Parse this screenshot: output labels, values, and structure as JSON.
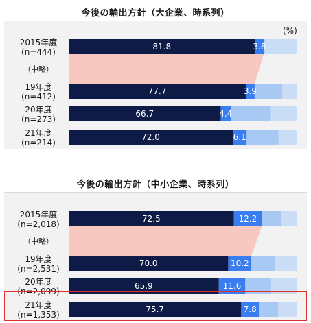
{
  "colors": {
    "future_expand": "#0d1b46",
    "new_start": "#16337f",
    "maintain": "#3a7df0",
    "reduce": "#a9c9f5",
    "withdraw": "#c9ddf7",
    "connector": "#f6c8c0",
    "highlight": "#e03030"
  },
  "chart_data": [
    {
      "type": "bar",
      "orientation": "horizontal",
      "stacked": true,
      "title": "今後の輸出方針（大企業、時系列）",
      "unit_label": "(%)",
      "omission_label": "（中略）",
      "rows": [
        {
          "label_year": "2015年度",
          "label_n": "(n=444)",
          "values": [
            81.8,
            0.0,
            3.8,
            0.5,
            0.6
          ]
        },
        {
          "label_year": "19年度",
          "label_n": "(n=412)",
          "values": [
            77.7,
            0.0,
            3.9,
            12.1,
            1.4
          ]
        },
        {
          "label_year": "20年度",
          "label_n": "(n=273)",
          "values": [
            66.7,
            0.0,
            4.4,
            17.6,
            0.4
          ]
        },
        {
          "label_year": "21年度",
          "label_n": "(n=214)",
          "values": [
            72.0,
            0.0,
            6.1,
            14.0,
            0.7
          ]
        }
      ],
      "labeled_values": [
        [
          "81.8",
          "3.8"
        ],
        [
          "77.7",
          "3.9"
        ],
        [
          "66.7",
          "4.4"
        ],
        [
          "72.0",
          "6.1"
        ]
      ],
      "xlim": [
        0,
        100
      ]
    },
    {
      "type": "bar",
      "orientation": "horizontal",
      "stacked": true,
      "title": "今後の輸出方針（中小企業、時系列）",
      "omission_label": "（中略）",
      "rows": [
        {
          "label_year": "2015年度",
          "label_n": "(n=2,018)",
          "values": [
            72.5,
            0.0,
            12.2,
            8.6,
            0.6
          ]
        },
        {
          "label_year": "19年度",
          "label_n": "(n=2,531)",
          "values": [
            70.0,
            0.0,
            10.2,
            10.2,
            0.7
          ]
        },
        {
          "label_year": "20年度",
          "label_n": "(n=2,099)",
          "values": [
            65.9,
            0.0,
            11.6,
            11.4,
            0.9
          ]
        },
        {
          "label_year": "21年度",
          "label_n": "(n=1,353)",
          "values": [
            75.7,
            0.0,
            7.8,
            8.4,
            0.7
          ]
        }
      ],
      "labeled_values": [
        [
          "72.5",
          "12.2"
        ],
        [
          "70.0",
          "10.2"
        ],
        [
          "65.9",
          "11.6"
        ],
        [
          "75.7",
          "7.8"
        ]
      ],
      "highlighted_row": 3,
      "xlim": [
        0,
        100
      ]
    }
  ]
}
